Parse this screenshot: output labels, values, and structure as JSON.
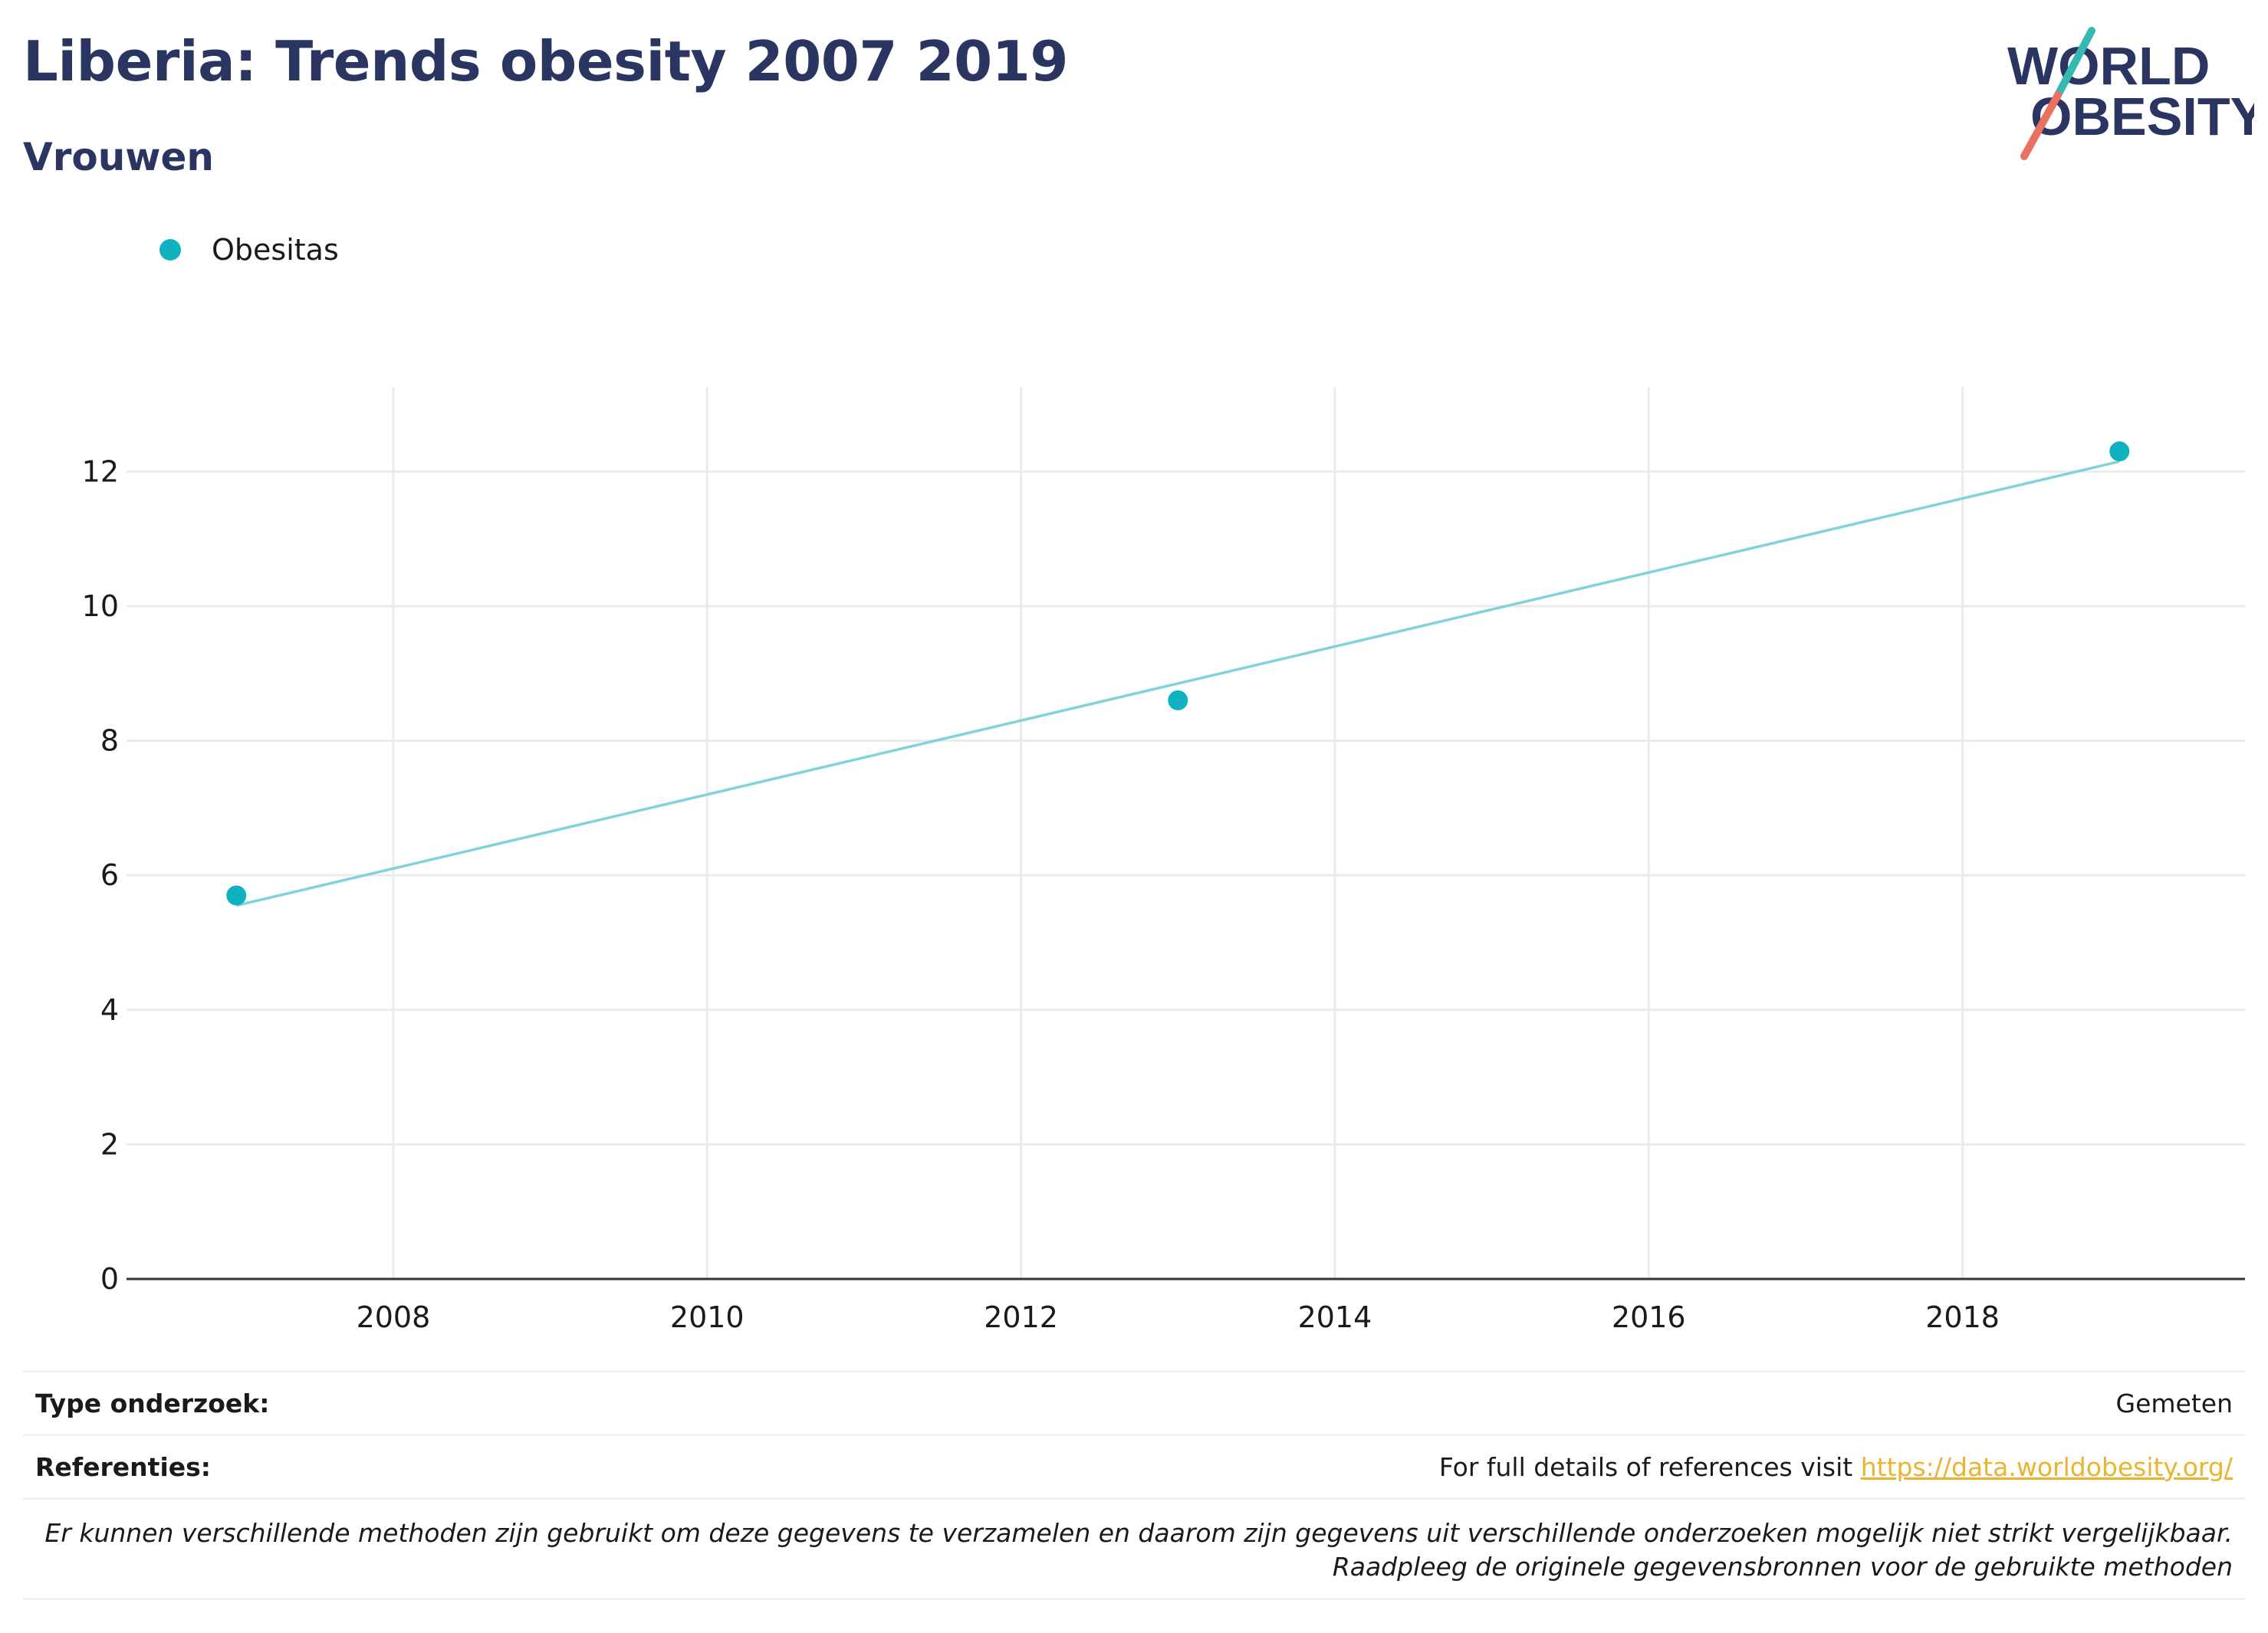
{
  "header": {
    "title": "Liberia: Trends obesity 2007 2019",
    "subtitle": "Vrouwen"
  },
  "logo": {
    "text_line1": "WORLD",
    "text_line2": "OBESITY",
    "icon": "world-obesity-logo"
  },
  "legend": {
    "label": "Obesitas"
  },
  "colors": {
    "title": "#2b3561",
    "marker": "#10b2c0",
    "trendline": "#7fd4da",
    "link": "#e9b530"
  },
  "chart_data": {
    "type": "scatter",
    "title": "Liberia: Trends obesity 2007 2019",
    "subtitle": "Vrouwen",
    "xlabel": "",
    "ylabel": "",
    "series": [
      {
        "name": "Obesitas",
        "x": [
          2007,
          2013,
          2019
        ],
        "y": [
          5.7,
          8.6,
          12.3
        ]
      }
    ],
    "trendline": {
      "x": [
        2007,
        2019
      ],
      "y": [
        5.55,
        12.15
      ]
    },
    "xlim": [
      2006.3,
      2019.8
    ],
    "ylim": [
      0,
      13.2
    ],
    "xticks": [
      2008,
      2010,
      2012,
      2014,
      2016,
      2018
    ],
    "yticks": [
      0,
      2,
      4,
      6,
      8,
      10,
      12
    ],
    "grid": true,
    "legend_position": "top-left"
  },
  "footer": {
    "type_label": "Type onderzoek:",
    "type_value": "Gemeten",
    "ref_label": "Referenties:",
    "ref_text": "For full details of references visit ",
    "ref_link": "https://data.worldobesity.org/",
    "note": "Er kunnen verschillende methoden zijn gebruikt om deze gegevens te verzamelen en daarom zijn gegevens uit verschillende onderzoeken mogelijk niet strikt vergelijkbaar. Raadpleeg de originele gegevensbronnen voor de gebruikte methoden"
  }
}
